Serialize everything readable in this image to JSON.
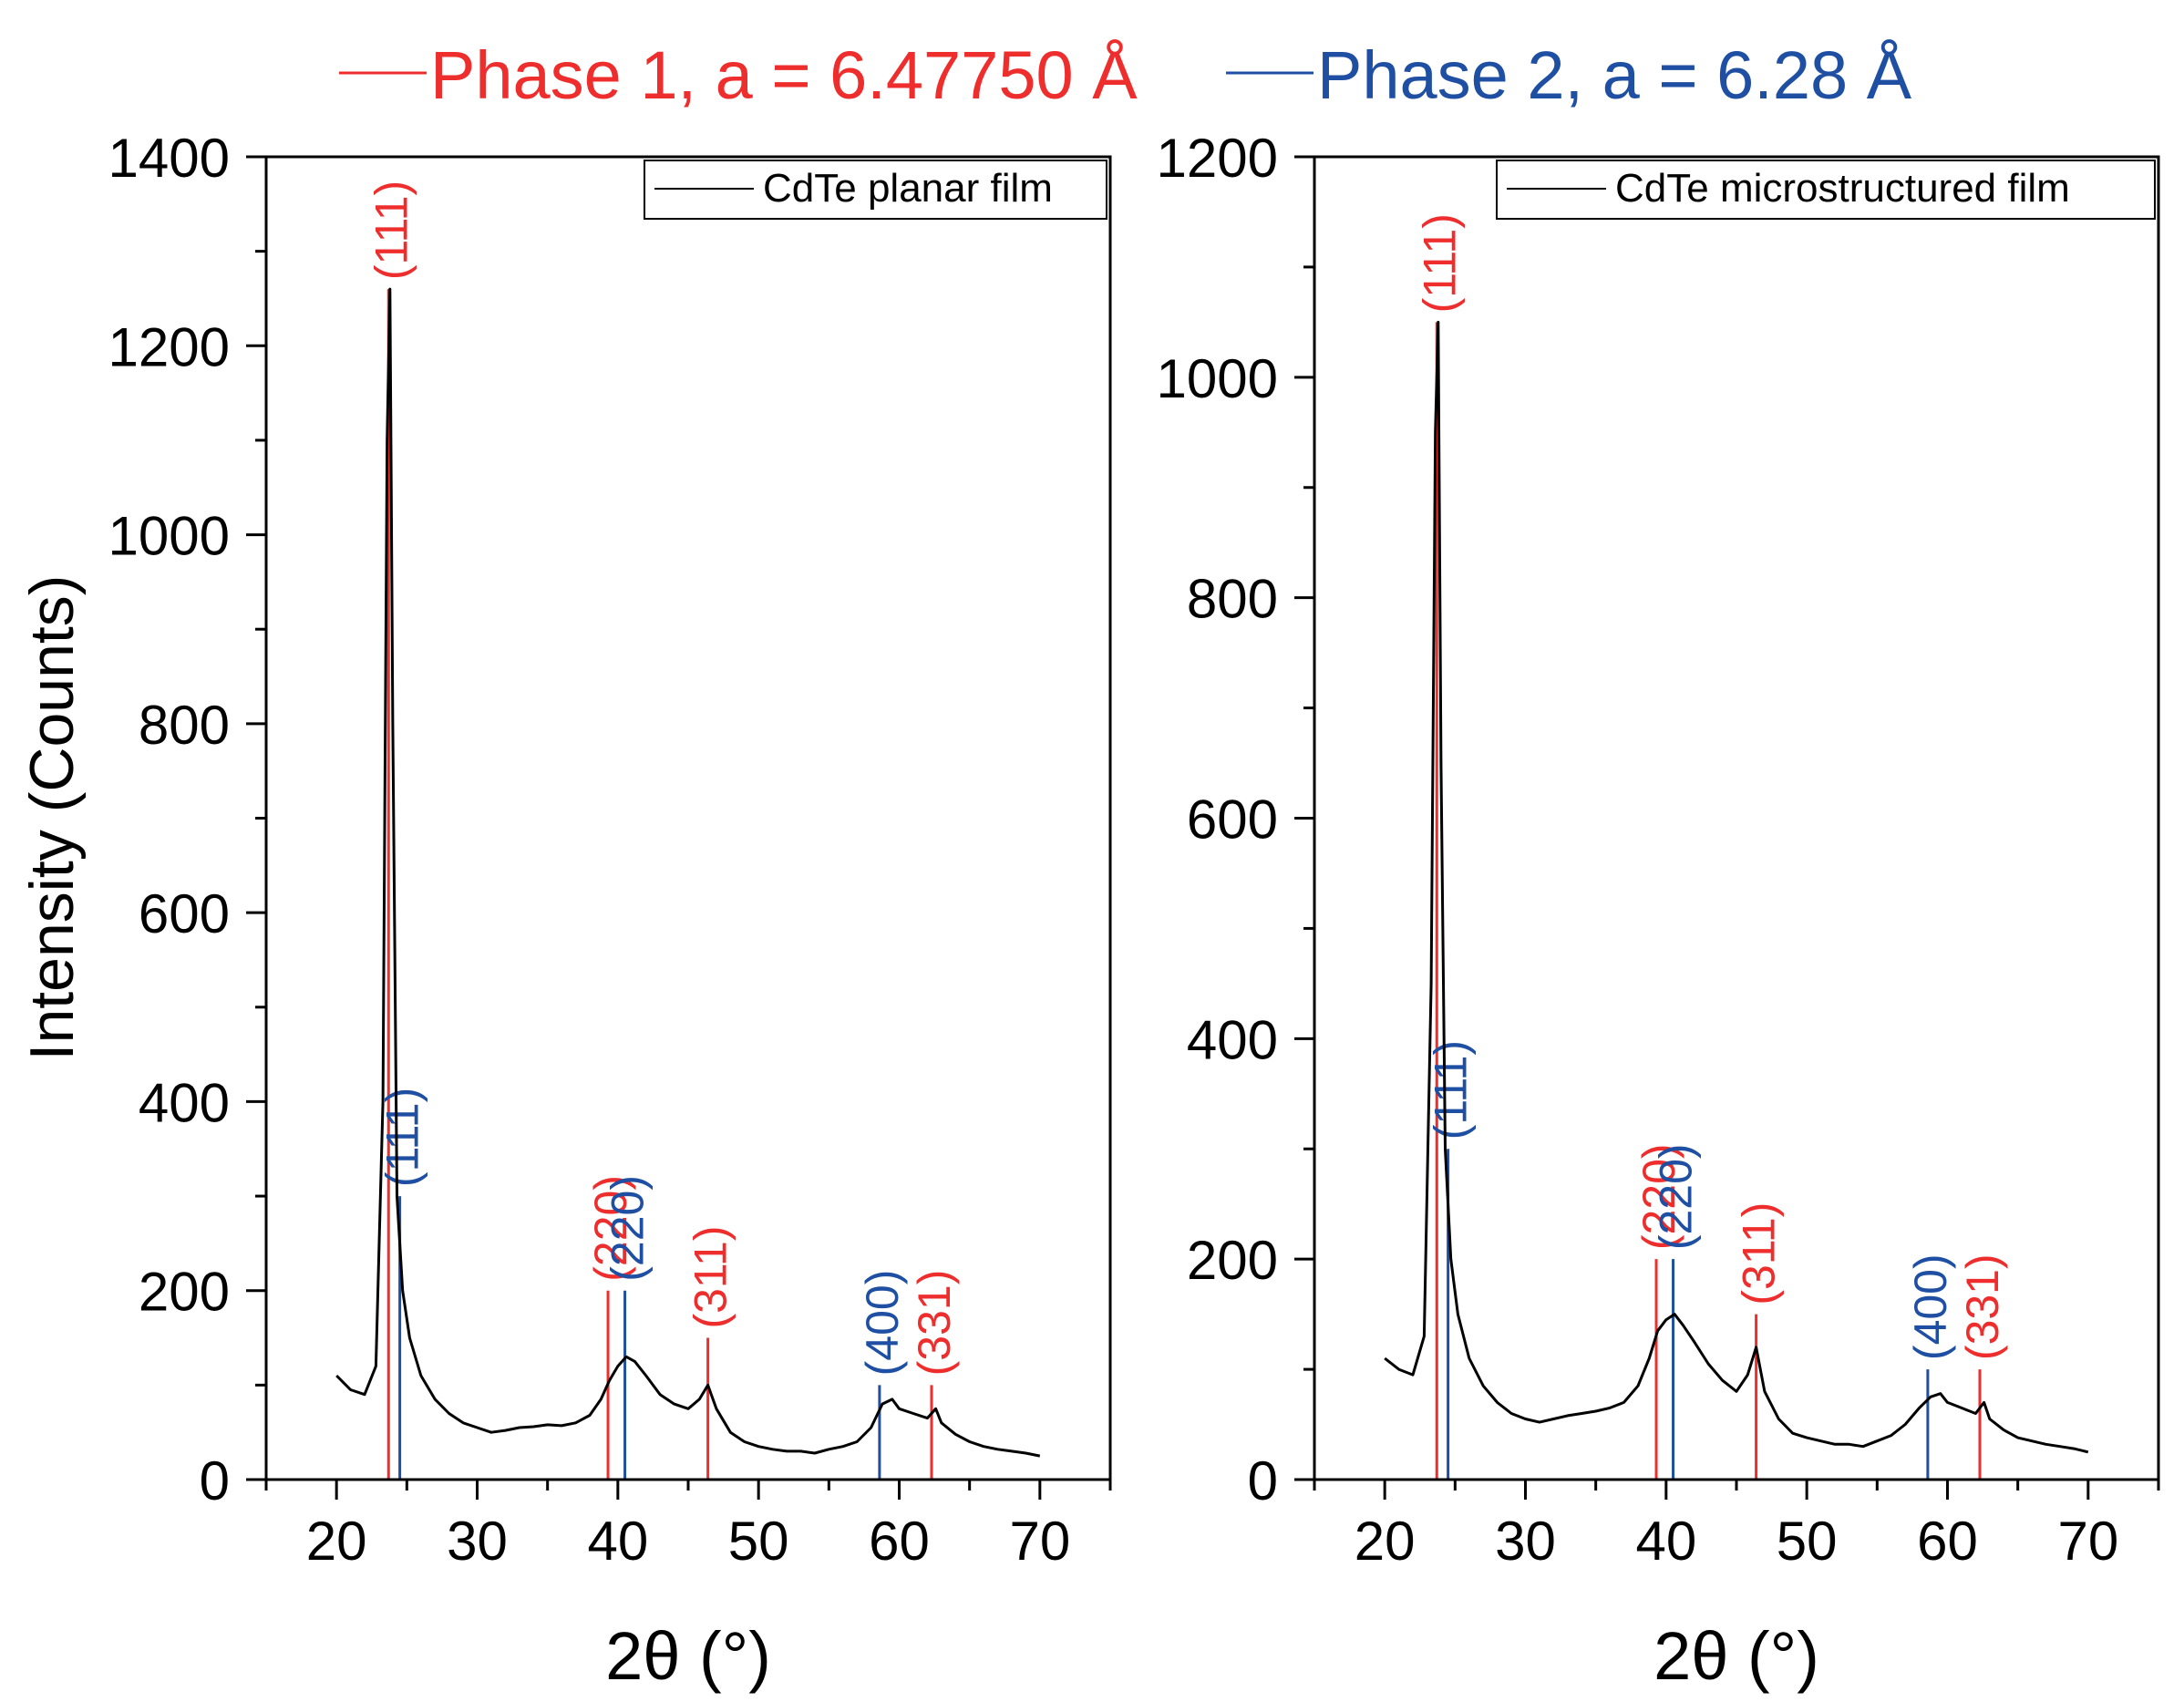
{
  "colors": {
    "phase1": "#ee2d2d",
    "phase2": "#1f4fa3",
    "trace": "#000000",
    "axis": "#000000"
  },
  "legend": {
    "phase1": "Phase 1, a = 6.47750 Å",
    "phase2": "Phase 2, a = 6.28 Å"
  },
  "chart_data": [
    {
      "type": "line",
      "title": "",
      "legend_label": "CdTe planar film",
      "xlabel": "2θ (°)",
      "ylabel": "Intensity (Counts)",
      "xlim": [
        15,
        75
      ],
      "ylim": [
        0,
        1400
      ],
      "xticks": [
        20,
        30,
        40,
        50,
        60,
        70
      ],
      "yticks": [
        0,
        200,
        400,
        600,
        800,
        1000,
        1200,
        1400
      ],
      "trace": {
        "x": [
          20,
          21,
          22,
          22.8,
          23.3,
          23.6,
          23.8,
          24.0,
          24.3,
          24.7,
          25.2,
          26,
          27,
          28,
          29,
          30,
          31,
          32,
          33,
          34,
          35,
          36,
          37,
          38,
          38.8,
          39.4,
          40,
          40.6,
          41.2,
          42,
          43,
          44,
          45,
          45.8,
          46.4,
          47,
          48,
          49,
          50,
          51,
          52,
          53,
          54,
          55,
          56,
          57,
          58,
          58.8,
          59.5,
          60,
          61,
          62,
          62.6,
          63,
          64,
          65,
          66,
          67,
          68,
          69,
          70
        ],
        "y": [
          110,
          95,
          90,
          120,
          400,
          1100,
          1260,
          800,
          300,
          200,
          150,
          110,
          85,
          70,
          60,
          55,
          50,
          52,
          55,
          56,
          58,
          57,
          60,
          68,
          85,
          105,
          120,
          130,
          125,
          110,
          90,
          80,
          75,
          85,
          100,
          75,
          50,
          40,
          35,
          32,
          30,
          30,
          28,
          32,
          35,
          40,
          55,
          80,
          85,
          75,
          70,
          65,
          75,
          60,
          48,
          40,
          35,
          32,
          30,
          28,
          25
        ]
      },
      "reflections": [
        {
          "label": "(111)",
          "phase": "phase1",
          "x": 23.7,
          "y": 1260
        },
        {
          "label": "(111)",
          "phase": "phase2",
          "x": 24.5,
          "y": 300
        },
        {
          "label": "(220)",
          "phase": "phase1",
          "x": 39.3,
          "y": 200
        },
        {
          "label": "(220)",
          "phase": "phase2",
          "x": 40.5,
          "y": 200
        },
        {
          "label": "(311)",
          "phase": "phase1",
          "x": 46.4,
          "y": 150
        },
        {
          "label": "(400)",
          "phase": "phase2",
          "x": 58.6,
          "y": 100
        },
        {
          "label": "(331)",
          "phase": "phase1",
          "x": 62.3,
          "y": 100
        }
      ]
    },
    {
      "type": "line",
      "title": "",
      "legend_label": "CdTe microstructured film",
      "xlabel": "2θ (°)",
      "ylabel": "",
      "xlim": [
        15,
        75
      ],
      "ylim": [
        0,
        1200
      ],
      "xticks": [
        20,
        30,
        40,
        50,
        60,
        70
      ],
      "yticks": [
        0,
        200,
        400,
        600,
        800,
        1000,
        1200
      ],
      "trace": {
        "x": [
          20,
          21,
          22,
          22.8,
          23.3,
          23.6,
          23.8,
          24.0,
          24.3,
          24.7,
          25.2,
          26,
          27,
          28,
          29,
          30,
          31,
          32,
          33,
          34,
          35,
          36,
          37,
          38,
          38.8,
          39.4,
          40,
          40.6,
          41.2,
          42,
          43,
          44,
          45,
          45.8,
          46.4,
          47,
          48,
          49,
          50,
          51,
          52,
          53,
          54,
          55,
          56,
          57,
          58,
          58.8,
          59.5,
          60,
          61,
          62,
          62.6,
          63,
          64,
          65,
          66,
          67,
          68,
          69,
          70
        ],
        "y": [
          110,
          100,
          95,
          130,
          450,
          950,
          1050,
          650,
          300,
          200,
          150,
          110,
          85,
          70,
          60,
          55,
          52,
          55,
          58,
          60,
          62,
          65,
          70,
          85,
          110,
          135,
          145,
          150,
          140,
          125,
          105,
          90,
          80,
          95,
          120,
          80,
          55,
          42,
          38,
          35,
          32,
          32,
          30,
          35,
          40,
          50,
          65,
          75,
          78,
          70,
          65,
          60,
          70,
          55,
          45,
          38,
          35,
          32,
          30,
          28,
          25
        ]
      },
      "reflections": [
        {
          "label": "(111)",
          "phase": "phase1",
          "x": 23.7,
          "y": 1050
        },
        {
          "label": "(111)",
          "phase": "phase2",
          "x": 24.5,
          "y": 300
        },
        {
          "label": "(220)",
          "phase": "phase1",
          "x": 39.3,
          "y": 200
        },
        {
          "label": "(220)",
          "phase": "phase2",
          "x": 40.5,
          "y": 200
        },
        {
          "label": "(311)",
          "phase": "phase1",
          "x": 46.4,
          "y": 150
        },
        {
          "label": "(400)",
          "phase": "phase2",
          "x": 58.6,
          "y": 100
        },
        {
          "label": "(331)",
          "phase": "phase1",
          "x": 62.3,
          "y": 100
        }
      ]
    }
  ]
}
